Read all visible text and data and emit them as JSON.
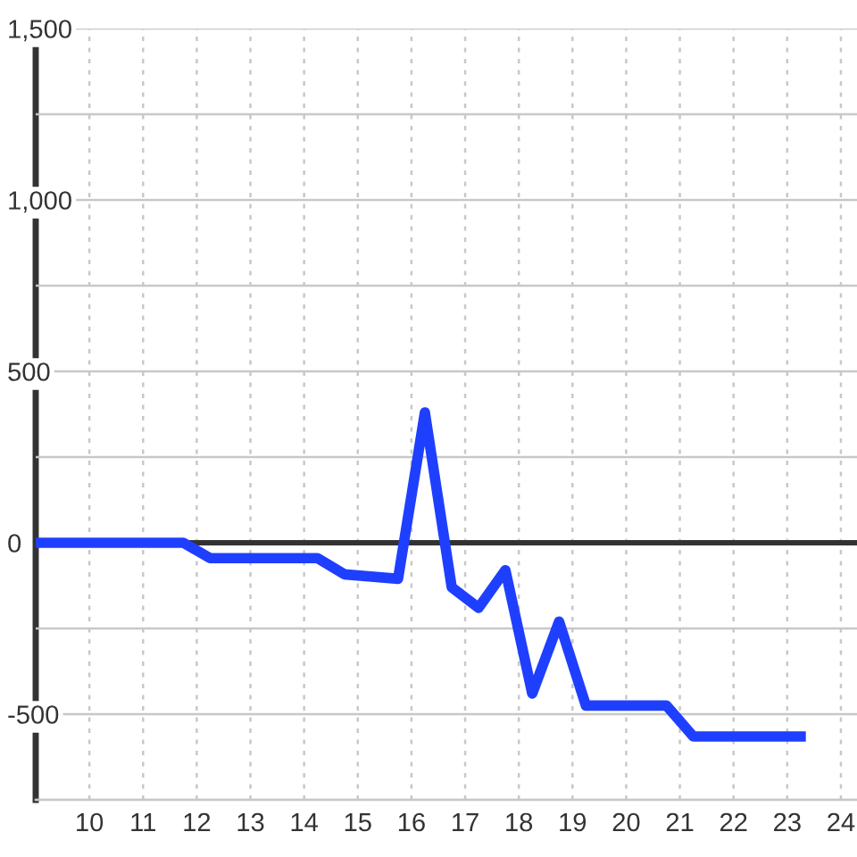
{
  "chart_data": {
    "type": "line",
    "x": [
      9,
      11.75,
      12.25,
      14.25,
      14.75,
      15.75,
      16.25,
      16.75,
      17.25,
      17.75,
      18.25,
      18.75,
      19.25,
      20.75,
      21.25,
      23.25
    ],
    "values": [
      0,
      0,
      -45,
      -45,
      -92,
      -105,
      380,
      -130,
      -190,
      -80,
      -440,
      -230,
      -475,
      -475,
      -565,
      -565
    ],
    "color": "#1f3fff",
    "line_style": "solid",
    "xlim": [
      9,
      24.3
    ],
    "xticks": [
      10,
      11,
      12,
      13,
      14,
      15,
      16,
      17,
      18,
      19,
      20,
      21,
      22,
      23,
      24
    ],
    "ylim": [
      -750,
      1500
    ],
    "yticks": [
      {
        "value": -750,
        "label": null
      },
      -500,
      {
        "value": -250,
        "label": null
      },
      0,
      {
        "value": 250,
        "label": null
      },
      500,
      {
        "value": 750,
        "label": null
      },
      {
        "value": 1000,
        "label": "1,000"
      },
      {
        "value": 1250,
        "label": null
      },
      {
        "value": 1500,
        "label": "1,500"
      }
    ],
    "grid": true,
    "ref_lines": [
      {
        "axis": "y",
        "value": 0,
        "color": "#333333"
      }
    ]
  }
}
